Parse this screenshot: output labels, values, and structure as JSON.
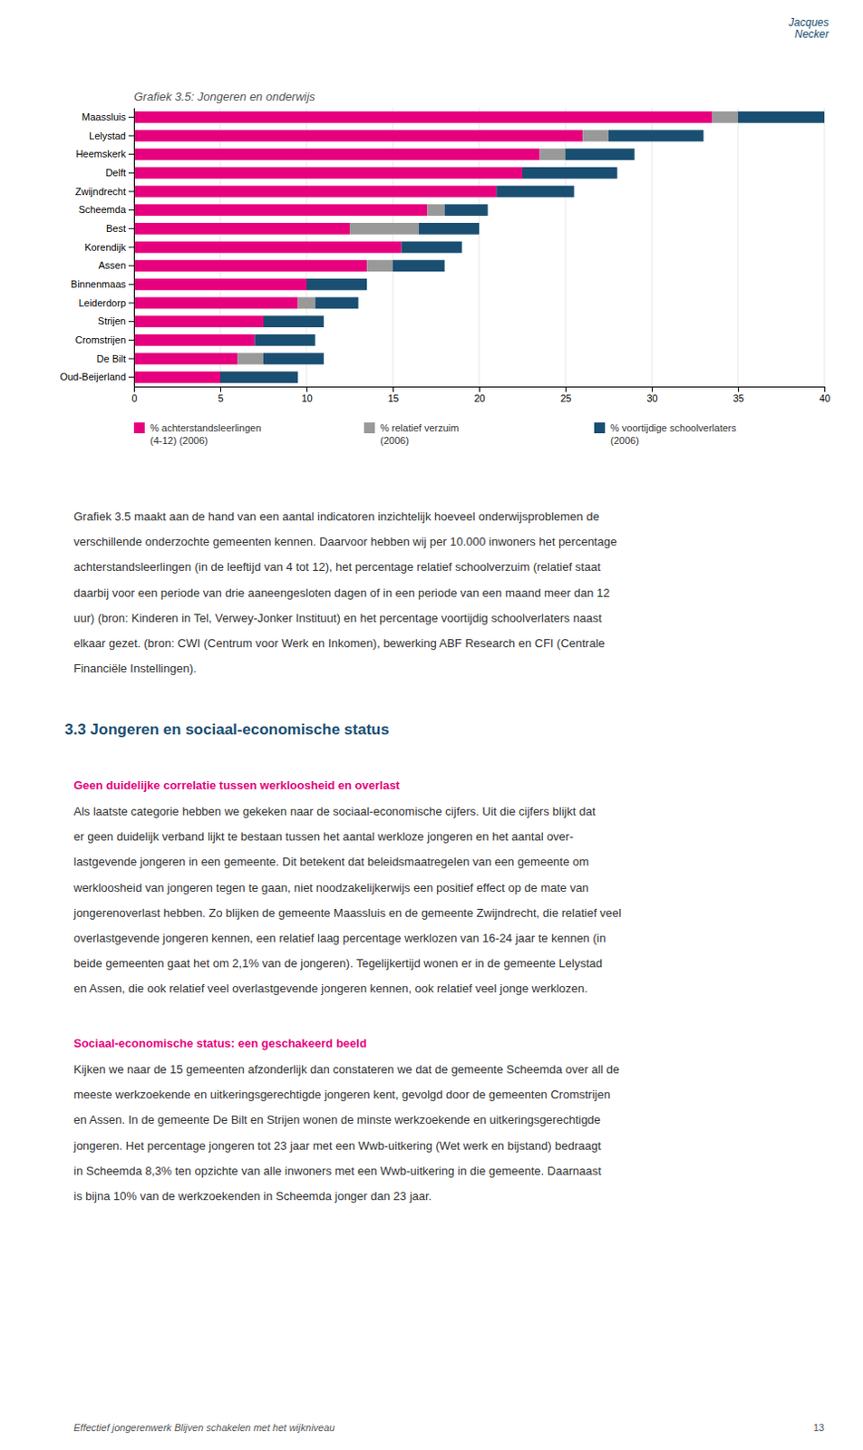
{
  "chart_data": {
    "type": "bar",
    "orientation": "horizontal",
    "stacked": true,
    "title": "Grafiek 3.5: Jongeren en onderwijs",
    "categories": [
      "Maassluis",
      "Lelystad",
      "Heemskerk",
      "Delft",
      "Zwijndrecht",
      "Scheemda",
      "Best",
      "Korendijk",
      "Assen",
      "Binnenmaas",
      "Leiderdorp",
      "Strijen",
      "Cromstrijen",
      "De Bilt",
      "Oud-Beijerland"
    ],
    "series": [
      {
        "name": "% achterstandsleerlingen\n(4-12) (2006)",
        "color": "#e6007e",
        "values": [
          33.5,
          26.0,
          23.5,
          22.5,
          21.0,
          17.0,
          12.5,
          15.5,
          13.5,
          10.0,
          9.5,
          7.5,
          7.0,
          6.0,
          5.0
        ]
      },
      {
        "name": "% relatief verzuim\n(2006)",
        "color": "#999999",
        "values": [
          1.5,
          1.5,
          1.5,
          0.0,
          0.0,
          1.0,
          4.0,
          0.0,
          1.5,
          0.0,
          1.0,
          0.0,
          0.0,
          1.5,
          0.0
        ]
      },
      {
        "name": "% voortijdige schoolverlaters\n(2006)",
        "color": "#1a4f72",
        "values": [
          5.0,
          5.5,
          4.0,
          5.5,
          4.5,
          2.5,
          3.5,
          3.5,
          3.0,
          3.5,
          2.5,
          3.5,
          3.5,
          3.5,
          4.5
        ]
      }
    ],
    "xlim": [
      0,
      40
    ],
    "xticks": [
      0,
      5,
      10,
      15,
      20,
      25,
      30,
      35,
      40
    ],
    "grid": true,
    "legend": "bottom"
  },
  "page": {
    "logo": [
      "Jacques",
      "Necker"
    ],
    "body1": [
      "Grafiek 3.5 maakt aan de hand van een aantal indicatoren inzichtelijk hoeveel onderwijsproblemen de",
      "verschillende onderzochte gemeenten kennen. Daarvoor hebben wij per 10.000 inwoners het percentage",
      "achterstandsleerlingen (in de leeftijd van 4 tot 12), het percentage relatief schoolverzuim (relatief staat",
      "daarbij voor een periode van drie aaneengesloten dagen of in een periode van een maand meer dan 12",
      "uur) (bron: Kinderen in Tel, Verwey-Jonker Instituut) en het percentage voortijdig schoolverlaters naast",
      "elkaar gezet. (bron: CWI (Centrum voor Werk en Inkomen), bewerking ABF Research en CFI (Centrale",
      "Financiële Instellingen)."
    ],
    "section_heading": "3.3  Jongeren en sociaal-economische status",
    "subheading1": "Geen duidelijke correlatie tussen werkloosheid en overlast",
    "body2": [
      "Als laatste categorie hebben we gekeken naar de sociaal-economische cijfers. Uit die cijfers blijkt dat",
      "er geen duidelijk verband lijkt te bestaan tussen het aantal werkloze jongeren en het aantal over-",
      "lastgevende jongeren in een gemeente. Dit betekent dat beleidsmaatregelen van een gemeente om",
      "werkloosheid van jongeren tegen te gaan, niet noodzakelijkerwijs een positief effect op de mate van",
      "jongerenoverlast hebben. Zo blijken de gemeente Maassluis en de gemeente Zwijndrecht, die relatief veel",
      "overlastgevende jongeren kennen, een relatief laag percentage werklozen van 16-24 jaar te kennen (in",
      "beide gemeenten gaat het om 2,1% van de jongeren). Tegelijkertijd wonen er in de gemeente Lelystad",
      "en Assen, die ook relatief veel overlastgevende jongeren kennen, ook relatief veel jonge werklozen."
    ],
    "subheading2": "Sociaal-economische status: een geschakeerd beeld",
    "body3": [
      "Kijken we naar de 15 gemeenten afzonderlijk dan constateren we dat de gemeente Scheemda over all de",
      "meeste werkzoekende en uitkeringsgerechtigde jongeren kent, gevolgd door de gemeenten Cromstrijen",
      "en Assen. In de gemeente De Bilt en Strijen wonen de minste werkzoekende en uitkeringsgerechtigde",
      "jongeren. Het percentage jongeren tot 23 jaar met een Wwb-uitkering (Wet werk en bijstand) bedraagt",
      "in Scheemda 8,3% ten opzichte van alle inwoners met een Wwb-uitkering in die gemeente. Daarnaast",
      "is bijna 10% van de werkzoekenden in Scheemda jonger dan 23 jaar."
    ],
    "footer": "Effectief jongerenwerk Blijven schakelen met het wijkniveau",
    "page_number": "13"
  }
}
